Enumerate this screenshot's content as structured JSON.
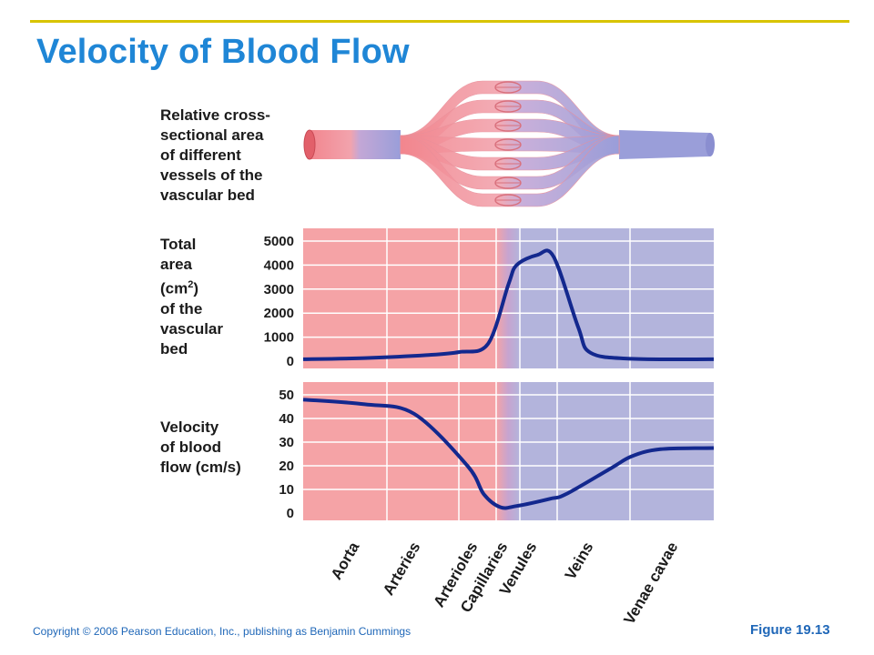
{
  "title": "Velocity of Blood Flow",
  "labels": {
    "vessels": [
      "Relative cross-",
      "sectional area",
      "of different",
      "vessels of the",
      "vascular bed"
    ],
    "area_pre": [
      "Total",
      "area"
    ],
    "area_unit_pre": "(cm",
    "area_unit_sup": "2",
    "area_unit_post": ")",
    "area_post": [
      "of the",
      "vascular",
      "bed"
    ],
    "velocity": [
      "Velocity",
      "of blood",
      "flow (cm/s)"
    ]
  },
  "footer": {
    "copyright": "Copyright © 2006 Pearson Education, Inc., publishing as Benjamin Cummings",
    "figure": "Figure 19.13"
  },
  "colors": {
    "title": "#1f86d6",
    "arterial": "#f5a3a6",
    "venous": "#b3b4dc",
    "curve": "#13288e",
    "grid": "#ffffff",
    "accent_line": "#d8c400"
  },
  "chart_data": [
    {
      "type": "line",
      "categories": [
        "Aorta",
        "Arteries",
        "Arterioles",
        "Capillaries",
        "Venules",
        "Veins",
        "Venae cavae"
      ],
      "ylabel": "Total area (cm2) of the vascular bed",
      "ylim": [
        0,
        5000
      ],
      "yticks": [
        0,
        1000,
        2000,
        3000,
        4000,
        5000
      ],
      "series": [
        {
          "x": [
            0,
            0.15,
            0.3,
            0.38,
            0.45,
            0.5,
            0.52,
            0.57,
            0.61,
            0.67,
            0.7,
            0.8,
            1.0
          ],
          "y": [
            80,
            130,
            250,
            380,
            720,
            3200,
            4000,
            4420,
            4350,
            1400,
            350,
            100,
            80
          ]
        }
      ]
    },
    {
      "type": "line",
      "categories": [
        "Aorta",
        "Arteries",
        "Arterioles",
        "Capillaries",
        "Venules",
        "Veins",
        "Venae cavae"
      ],
      "ylabel": "Velocity of blood flow (cm/s)",
      "ylim": [
        0,
        50
      ],
      "yticks": [
        0,
        10,
        20,
        30,
        40,
        50
      ],
      "series": [
        {
          "x": [
            0,
            0.15,
            0.27,
            0.4,
            0.44,
            0.48,
            0.52,
            0.6,
            0.64,
            0.75,
            0.8,
            0.87,
            1.0
          ],
          "y": [
            48,
            46,
            42,
            20,
            8,
            2.5,
            3,
            6,
            8,
            19,
            24,
            27,
            27.5
          ]
        }
      ]
    }
  ]
}
